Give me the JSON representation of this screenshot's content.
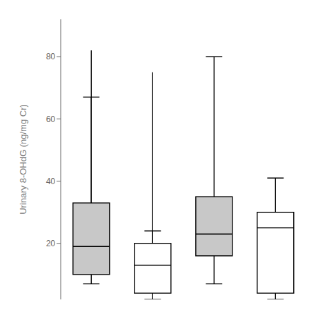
{
  "chart_data": {
    "type": "box",
    "ylabel": "Urinary 8-OHdG (ng/mg Cr)",
    "categories": [
      null,
      null,
      null,
      null
    ],
    "q1": [
      10,
      4,
      16,
      4
    ],
    "median": [
      19,
      13,
      23,
      25
    ],
    "q3": [
      33,
      20,
      35,
      30
    ],
    "whisker_low": [
      7,
      2,
      7,
      2
    ],
    "whisker_high": [
      67,
      24,
      80,
      41
    ],
    "whisker_high2": [
      82,
      75,
      null,
      null
    ],
    "colors": [
      "#c8c8c8",
      "#ffffff",
      "#c8c8c8",
      "#ffffff"
    ],
    "ylim": [
      2,
      92
    ],
    "yticks": [
      20,
      40,
      60,
      80
    ],
    "grid": false,
    "tick_labels": "y"
  }
}
